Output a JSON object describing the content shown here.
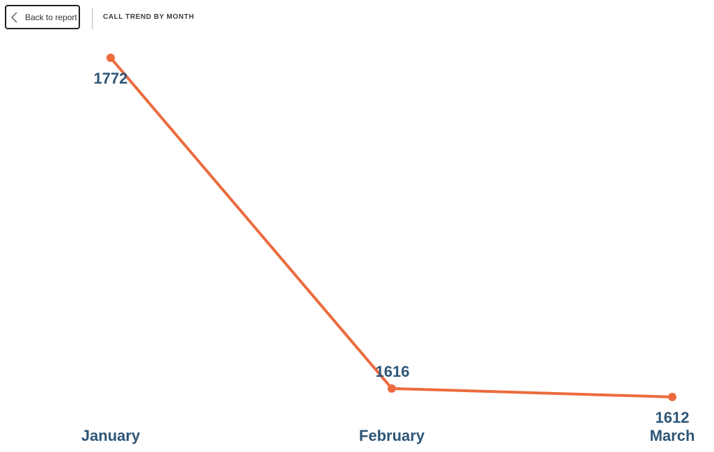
{
  "header": {
    "back_label": "Back to report",
    "back_icon": "chevron-left-icon",
    "title": "CALL TREND BY MONTH"
  },
  "colors": {
    "line": "#ec6b3d",
    "label": "#2e5677"
  },
  "chart_data": {
    "type": "line",
    "title": "CALL TREND BY MONTH",
    "categories": [
      "January",
      "February",
      "March"
    ],
    "series": [
      {
        "values": [
          1772,
          1616,
          1612
        ]
      }
    ],
    "data_labels": [
      "1772",
      "1616",
      "1612"
    ],
    "xlabel": "",
    "ylabel": "",
    "grid": false,
    "legend": "none"
  }
}
